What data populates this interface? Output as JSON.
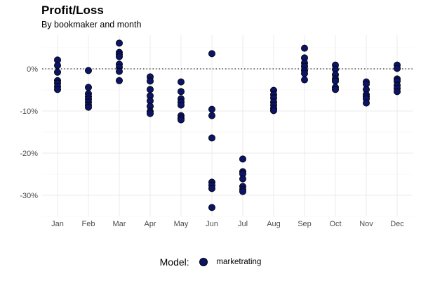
{
  "chart_data": {
    "type": "scatter",
    "title": "Profit/Loss",
    "subtitle": "By bookmaker and month",
    "xlabel": "",
    "ylabel": "",
    "categories": [
      "Jan",
      "Feb",
      "Mar",
      "Apr",
      "May",
      "Jun",
      "Jul",
      "Aug",
      "Sep",
      "Oct",
      "Nov",
      "Dec"
    ],
    "ylim": [
      -35,
      8
    ],
    "yticks": [
      0,
      -10,
      -20,
      -30
    ],
    "ytick_labels": [
      "0%",
      "-10%",
      "-20%",
      "-30%"
    ],
    "reference_line": {
      "y": 0,
      "style": "dotted"
    },
    "grid": true,
    "legend": {
      "title": "Model:",
      "position": "bottom"
    },
    "series": [
      {
        "name": "marketrating",
        "color": "#0b1466",
        "points": {
          "Jan": [
            2.1,
            0.8,
            -0.8,
            -2.8,
            -3.4,
            -4.2,
            -4.9
          ],
          "Feb": [
            -0.4,
            -4.4,
            -5.9,
            -6.6,
            -7.2,
            -7.9,
            -8.6,
            -9.1
          ],
          "Mar": [
            6.1,
            3.9,
            3.4,
            2.9,
            1.1,
            0.4,
            -0.6,
            -2.8
          ],
          "Apr": [
            -1.9,
            -2.9,
            -4.9,
            -6.4,
            -7.6,
            -8.9,
            -10.1,
            -10.6
          ],
          "May": [
            -3.1,
            -5.4,
            -7.1,
            -7.9,
            -8.6,
            -11.1,
            -11.7,
            -12.1
          ],
          "Jun": [
            3.6,
            -9.6,
            -11.1,
            -16.4,
            -26.9,
            -27.6,
            -28.4,
            -32.9
          ],
          "Jul": [
            -21.4,
            -24.4,
            -24.9,
            -26.1,
            -27.9,
            -28.6,
            -29.1
          ],
          "Aug": [
            -5.1,
            -6.1,
            -6.9,
            -7.9,
            -8.6,
            -9.4,
            -9.9
          ],
          "Sep": [
            4.9,
            2.6,
            1.4,
            0.6,
            -0.4,
            -1.1,
            -2.6
          ],
          "Oct": [
            0.9,
            -0.1,
            -1.4,
            -2.4,
            -2.9,
            -4.4,
            -4.9
          ],
          "Nov": [
            -3.1,
            -3.6,
            -4.9,
            -6.1,
            -6.6,
            -7.1,
            -8.1
          ],
          "Dec": [
            0.9,
            0.1,
            -2.4,
            -2.9,
            -3.9,
            -4.6,
            -5.4
          ]
        }
      }
    ]
  }
}
